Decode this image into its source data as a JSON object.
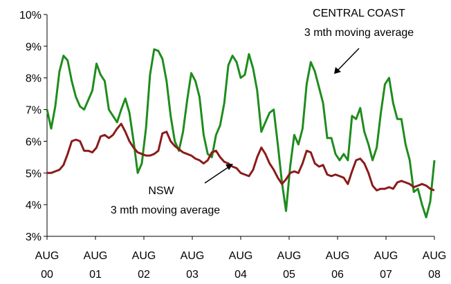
{
  "chart_data": {
    "type": "line",
    "x_tick_labels": [
      {
        "month": "AUG",
        "year": "00"
      },
      {
        "month": "AUG",
        "year": "01"
      },
      {
        "month": "AUG",
        "year": "02"
      },
      {
        "month": "AUG",
        "year": "03"
      },
      {
        "month": "AUG",
        "year": "04"
      },
      {
        "month": "AUG",
        "year": "05"
      },
      {
        "month": "AUG",
        "year": "06"
      },
      {
        "month": "AUG",
        "year": "07"
      },
      {
        "month": "AUG",
        "year": "08"
      }
    ],
    "y_tick_labels": [
      "3%",
      "4%",
      "5%",
      "6%",
      "7%",
      "8%",
      "9%",
      "10%"
    ],
    "ylim": [
      3,
      10
    ],
    "xlim": [
      "2000-08",
      "2008-08"
    ],
    "grid": false,
    "legend": "none",
    "series": [
      {
        "name": "CENTRAL COAST 3 mth moving average",
        "color": "#1e8c1e",
        "values": [
          7.0,
          6.4,
          7.1,
          8.2,
          8.7,
          8.55,
          7.9,
          7.4,
          7.1,
          7.0,
          7.3,
          7.6,
          8.45,
          8.1,
          7.9,
          7.0,
          6.8,
          6.6,
          7.0,
          7.35,
          6.9,
          6.0,
          5.0,
          5.3,
          6.4,
          8.1,
          8.9,
          8.85,
          8.6,
          7.9,
          6.8,
          6.0,
          5.7,
          6.3,
          7.3,
          8.15,
          7.9,
          7.4,
          6.2,
          5.6,
          5.5,
          6.2,
          6.5,
          7.2,
          8.4,
          8.7,
          8.5,
          8.0,
          8.1,
          8.75,
          8.3,
          7.6,
          6.3,
          6.6,
          6.9,
          7.0,
          5.9,
          4.7,
          3.8,
          5.2,
          6.2,
          5.9,
          6.4,
          7.8,
          8.5,
          8.2,
          7.7,
          7.2,
          6.1,
          6.1,
          5.6,
          5.4,
          5.6,
          5.4,
          6.8,
          6.7,
          7.05,
          6.3,
          5.9,
          5.4,
          5.8,
          6.9,
          7.8,
          8.0,
          7.2,
          6.7,
          6.7,
          5.9,
          5.4,
          4.4,
          4.5,
          4.0,
          3.6,
          4.1,
          5.4
        ]
      },
      {
        "name": "NSW 3 mth moving average",
        "color": "#8b1a1a",
        "values": [
          5.0,
          5.0,
          5.05,
          5.1,
          5.25,
          5.6,
          6.0,
          6.05,
          6.0,
          5.7,
          5.7,
          5.65,
          5.8,
          6.15,
          6.2,
          6.1,
          6.2,
          6.4,
          6.55,
          6.3,
          6.0,
          5.8,
          5.65,
          5.6,
          5.55,
          5.55,
          5.6,
          5.7,
          6.25,
          6.3,
          6.0,
          5.85,
          5.75,
          5.65,
          5.6,
          5.55,
          5.45,
          5.4,
          5.3,
          5.4,
          5.65,
          5.7,
          5.5,
          5.35,
          5.3,
          5.2,
          5.15,
          5.0,
          4.95,
          4.9,
          5.1,
          5.5,
          5.8,
          5.6,
          5.3,
          5.1,
          4.85,
          4.65,
          4.8,
          5.0,
          5.05,
          5.0,
          5.3,
          5.7,
          5.65,
          5.3,
          5.2,
          5.25,
          4.95,
          4.9,
          4.95,
          4.9,
          4.85,
          4.65,
          5.05,
          5.4,
          5.45,
          5.3,
          5.0,
          4.6,
          4.45,
          4.5,
          4.5,
          4.55,
          4.5,
          4.7,
          4.75,
          4.7,
          4.65,
          4.55,
          4.6,
          4.65,
          4.6,
          4.5,
          4.45
        ]
      }
    ],
    "annotations": {
      "central_coast_line1": "CENTRAL COAST",
      "central_coast_line2": "3 mth moving average",
      "nsw_line1": "NSW",
      "nsw_line2": "3 mth moving average"
    }
  }
}
